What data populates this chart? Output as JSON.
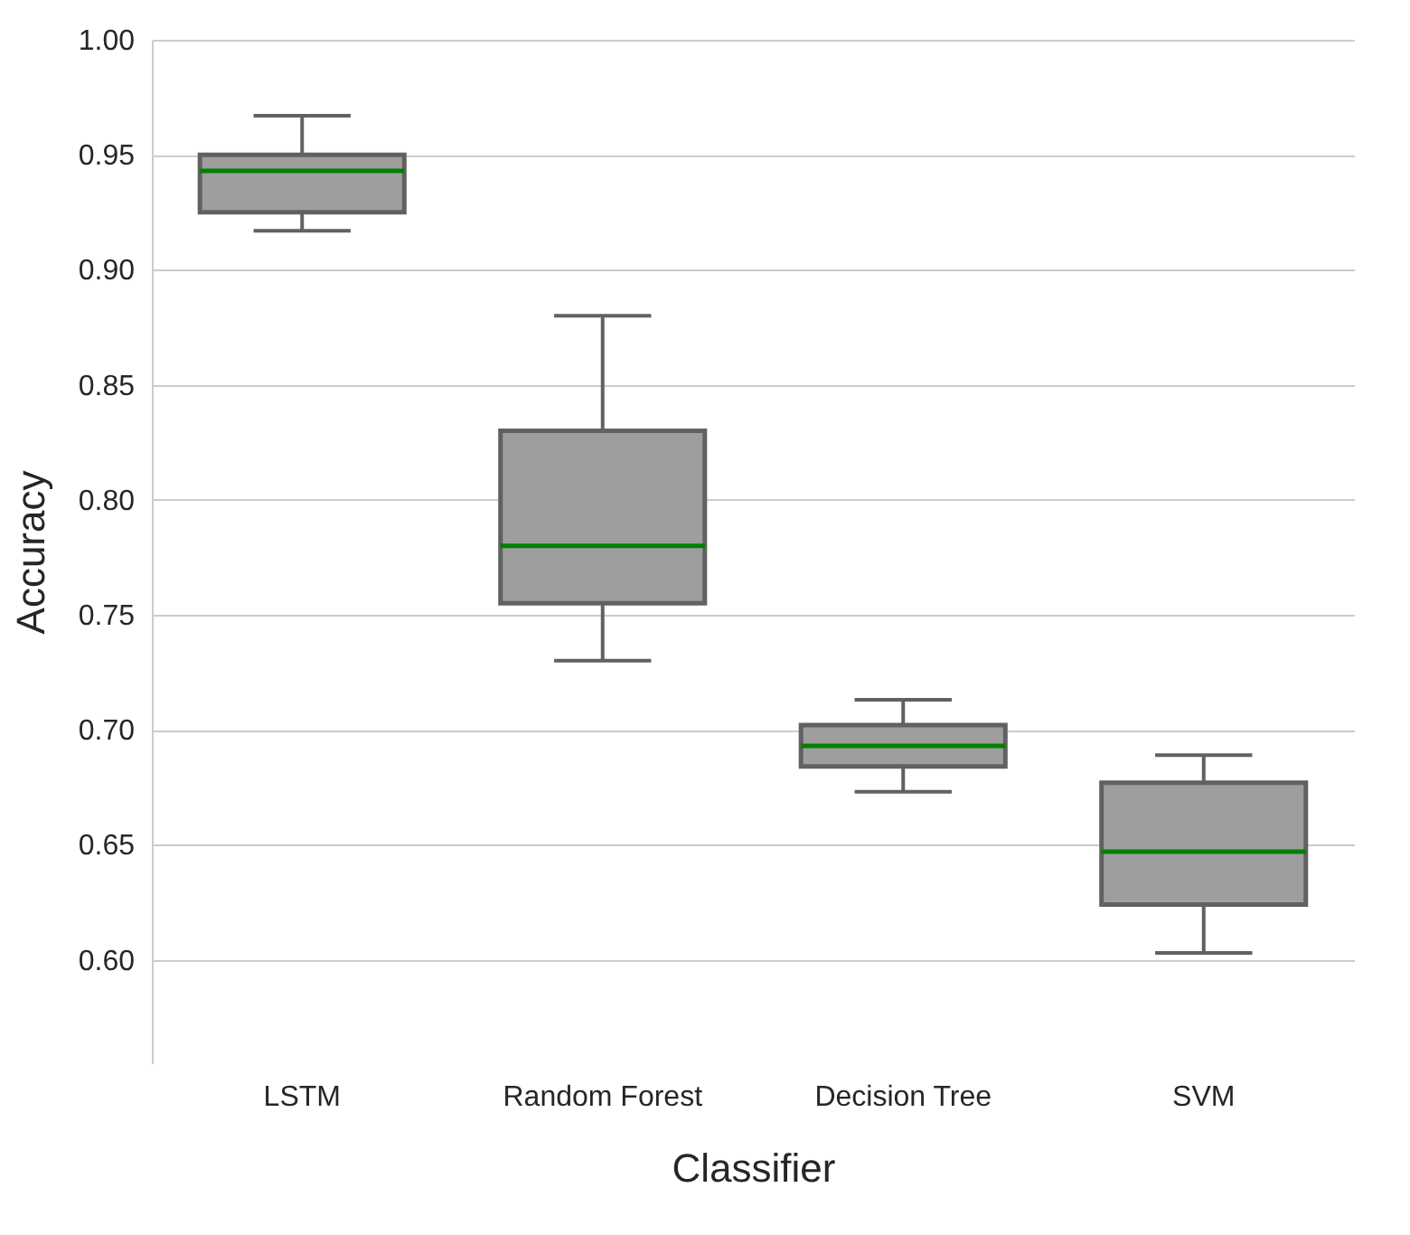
{
  "chart_data": {
    "type": "box",
    "xlabel": "Classifier",
    "ylabel": "Accuracy",
    "categories": [
      "LSTM",
      "Random Forest",
      "Decision Tree",
      "SVM"
    ],
    "boxes": [
      {
        "low": 0.917,
        "q1": 0.925,
        "median": 0.943,
        "q3": 0.95,
        "high": 0.967
      },
      {
        "low": 0.73,
        "q1": 0.755,
        "median": 0.78,
        "q3": 0.83,
        "high": 0.88
      },
      {
        "low": 0.673,
        "q1": 0.684,
        "median": 0.693,
        "q3": 0.702,
        "high": 0.713
      },
      {
        "low": 0.603,
        "q1": 0.624,
        "median": 0.647,
        "q3": 0.677,
        "high": 0.689
      }
    ],
    "color": "#9e9e9e",
    "ylim": [
      0.555,
      1.0
    ],
    "yticks": [
      {
        "value": 0.6,
        "label": "0.60"
      },
      0.65,
      {
        "value": 0.7,
        "label": "0.70"
      },
      0.75,
      {
        "value": 0.8,
        "label": "0.80"
      },
      0.85,
      {
        "value": 0.9,
        "label": "0.90"
      },
      0.95,
      {
        "value": 1.0,
        "label": "1.00"
      }
    ],
    "grid": "y"
  }
}
